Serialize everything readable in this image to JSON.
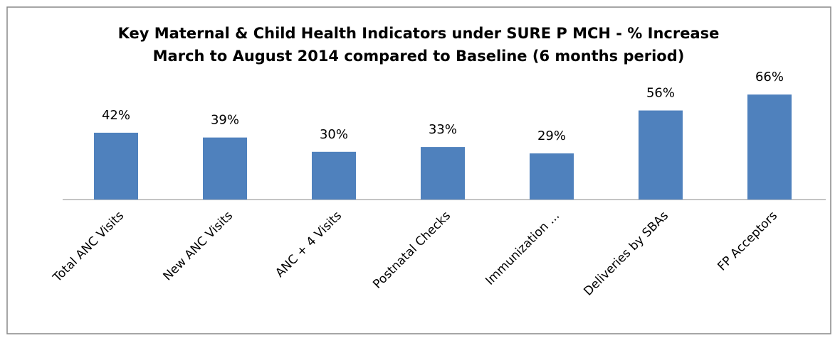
{
  "chart_data": {
    "type": "bar",
    "title": [
      "Key Maternal & Child Health Indicators under SURE P MCH - % Increase",
      "March to August 2014 compared to Baseline (6 months period)"
    ],
    "categories": [
      "Total ANC Visits",
      "New ANC Visits",
      "ANC + 4 Visits",
      "Postnatal Checks",
      "Immunization ...",
      "Deliveries by SBAs",
      "FP Acceptors"
    ],
    "values": [
      42,
      39,
      30,
      33,
      29,
      56,
      66
    ],
    "value_labels": [
      "42%",
      "39%",
      "30%",
      "33%",
      "29%",
      "56%",
      "66%"
    ],
    "color": "#4f81bd"
  }
}
